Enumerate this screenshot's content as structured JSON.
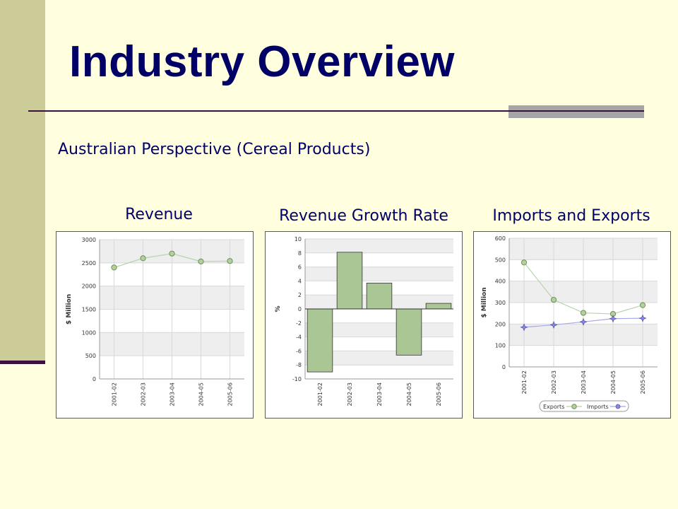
{
  "slide": {
    "title": "Industry Overview",
    "subtitle": "Australian Perspective (Cereal Products)"
  },
  "colors": {
    "background": "#ffffe0",
    "accent_bar": "#cccc99",
    "title_text": "#000066",
    "green_series": "#99bb88",
    "blue_series": "#7f7fcc"
  },
  "chart_data": [
    {
      "type": "line",
      "title": "Revenue",
      "ylabel": "$ Million",
      "categories": [
        "2001-02",
        "2002-03",
        "2003-04",
        "2004-05",
        "2005-06"
      ],
      "series": [
        {
          "values": [
            2400,
            2600,
            2700,
            2530,
            2540
          ]
        }
      ],
      "ylim": [
        0,
        3000
      ],
      "yticks": [
        0,
        500,
        1000,
        1500,
        2000,
        2500,
        3000
      ],
      "grid": true
    },
    {
      "type": "bar",
      "title": "Revenue Growth Rate",
      "ylabel": "%",
      "categories": [
        "2001-02",
        "2002-03",
        "2003-04",
        "2004-05",
        "2005-06"
      ],
      "values": [
        -9.0,
        8.1,
        3.7,
        -6.6,
        0.8
      ],
      "ylim": [
        -10,
        10
      ],
      "yticks": [
        -10,
        -8,
        -6,
        -4,
        -2,
        0,
        2,
        4,
        6,
        8,
        10
      ],
      "grid": true
    },
    {
      "type": "line",
      "title": "Imports and Exports",
      "ylabel": "$ Million",
      "categories": [
        "2001-02",
        "2002-03",
        "2003-04",
        "2004-05",
        "2005-06"
      ],
      "series": [
        {
          "name": "Exports",
          "values": [
            487,
            313,
            252,
            247,
            288
          ]
        },
        {
          "name": "Imports",
          "values": [
            185,
            196,
            210,
            225,
            227
          ]
        }
      ],
      "ylim": [
        0,
        600
      ],
      "yticks": [
        0,
        100,
        200,
        300,
        400,
        500,
        600
      ],
      "grid": true,
      "legend": "bottom"
    }
  ]
}
